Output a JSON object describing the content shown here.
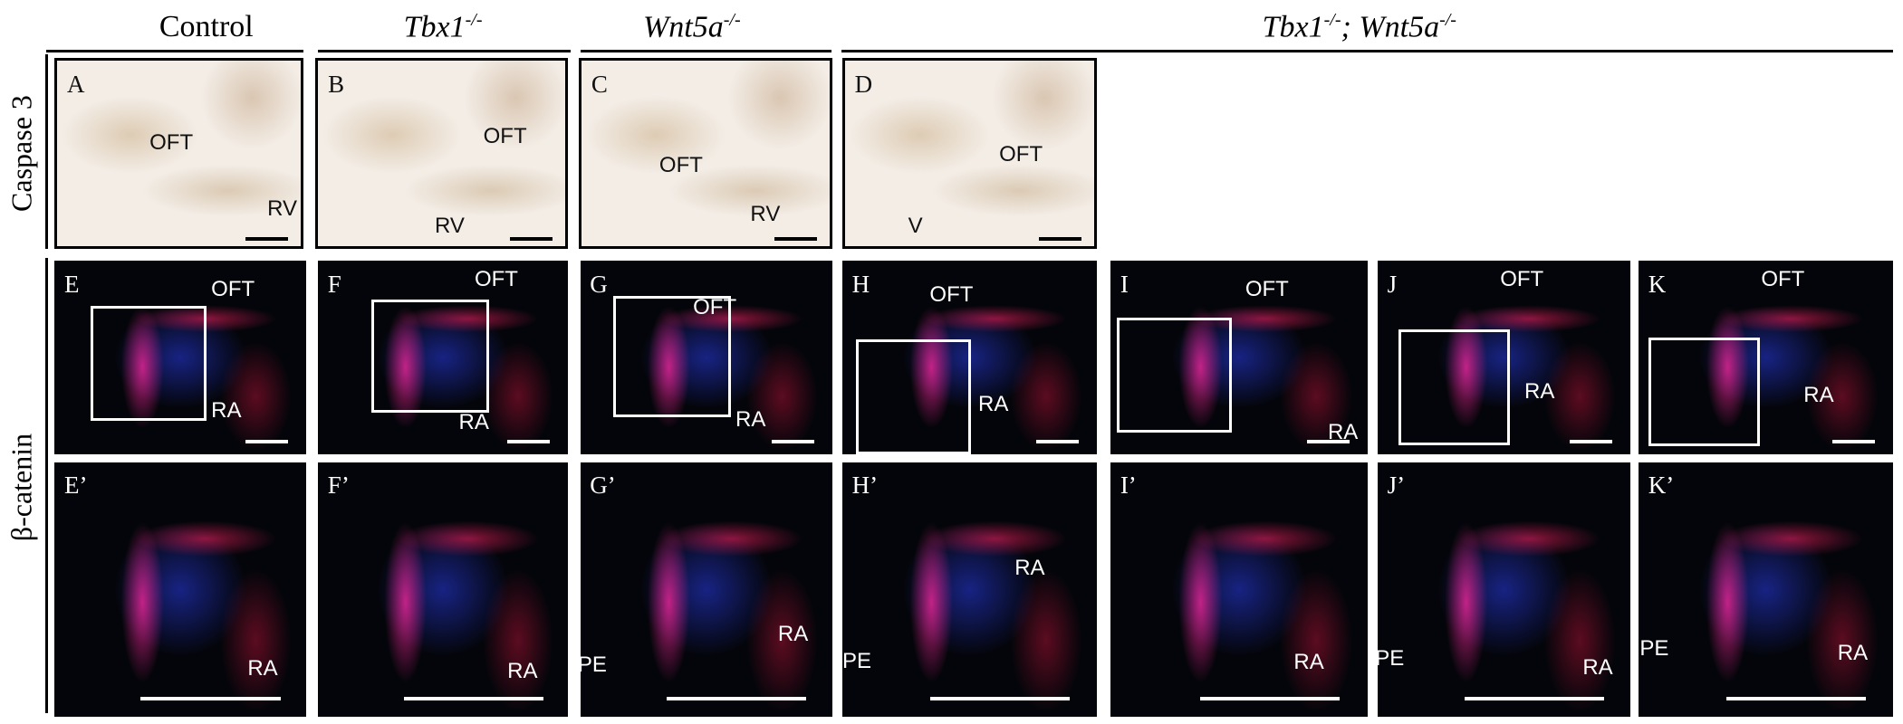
{
  "columns": [
    [
      {
        "text": "Control"
      }
    ],
    [
      {
        "text": "Tbx1",
        "sup": "-/-"
      }
    ],
    [
      {
        "text": "Wnt5a",
        "sup": "-/-"
      }
    ],
    [
      {
        "text": "Tbx1",
        "sup": "-/-"
      },
      {
        "text": "; Wnt5a",
        "sup": "-/-"
      }
    ]
  ],
  "row_labels": [
    "Caspase 3",
    "β-catenin"
  ],
  "panels": [
    {
      "letter": "A",
      "labels": [
        "OFT",
        "RV"
      ]
    },
    {
      "letter": "B",
      "labels": [
        "OFT",
        "RV"
      ]
    },
    {
      "letter": "C",
      "labels": [
        "OFT",
        "RV"
      ]
    },
    {
      "letter": "D",
      "labels": [
        "OFT",
        "V"
      ]
    },
    {
      "letter": "E",
      "labels": [
        "OFT",
        "RA"
      ]
    },
    {
      "letter": "F",
      "labels": [
        "OFT",
        "RA"
      ]
    },
    {
      "letter": "G",
      "labels": [
        "OFT",
        "RA"
      ]
    },
    {
      "letter": "H",
      "labels": [
        "OFT",
        "RA"
      ]
    },
    {
      "letter": "I",
      "labels": [
        "OFT",
        "RA"
      ]
    },
    {
      "letter": "J",
      "labels": [
        "OFT",
        "RA"
      ]
    },
    {
      "letter": "K",
      "labels": [
        "OFT",
        "RA"
      ]
    },
    {
      "letter": "E’",
      "labels": [
        "RA"
      ]
    },
    {
      "letter": "F’",
      "labels": [
        "RA"
      ]
    },
    {
      "letter": "G’",
      "labels": [
        "PE",
        "RA"
      ]
    },
    {
      "letter": "H’",
      "labels": [
        "PE",
        "RA"
      ]
    },
    {
      "letter": "I’",
      "labels": [
        "RA"
      ]
    },
    {
      "letter": "J’",
      "labels": [
        "PE",
        "RA"
      ]
    },
    {
      "letter": "K’",
      "labels": [
        "PE",
        "RA"
      ]
    }
  ]
}
